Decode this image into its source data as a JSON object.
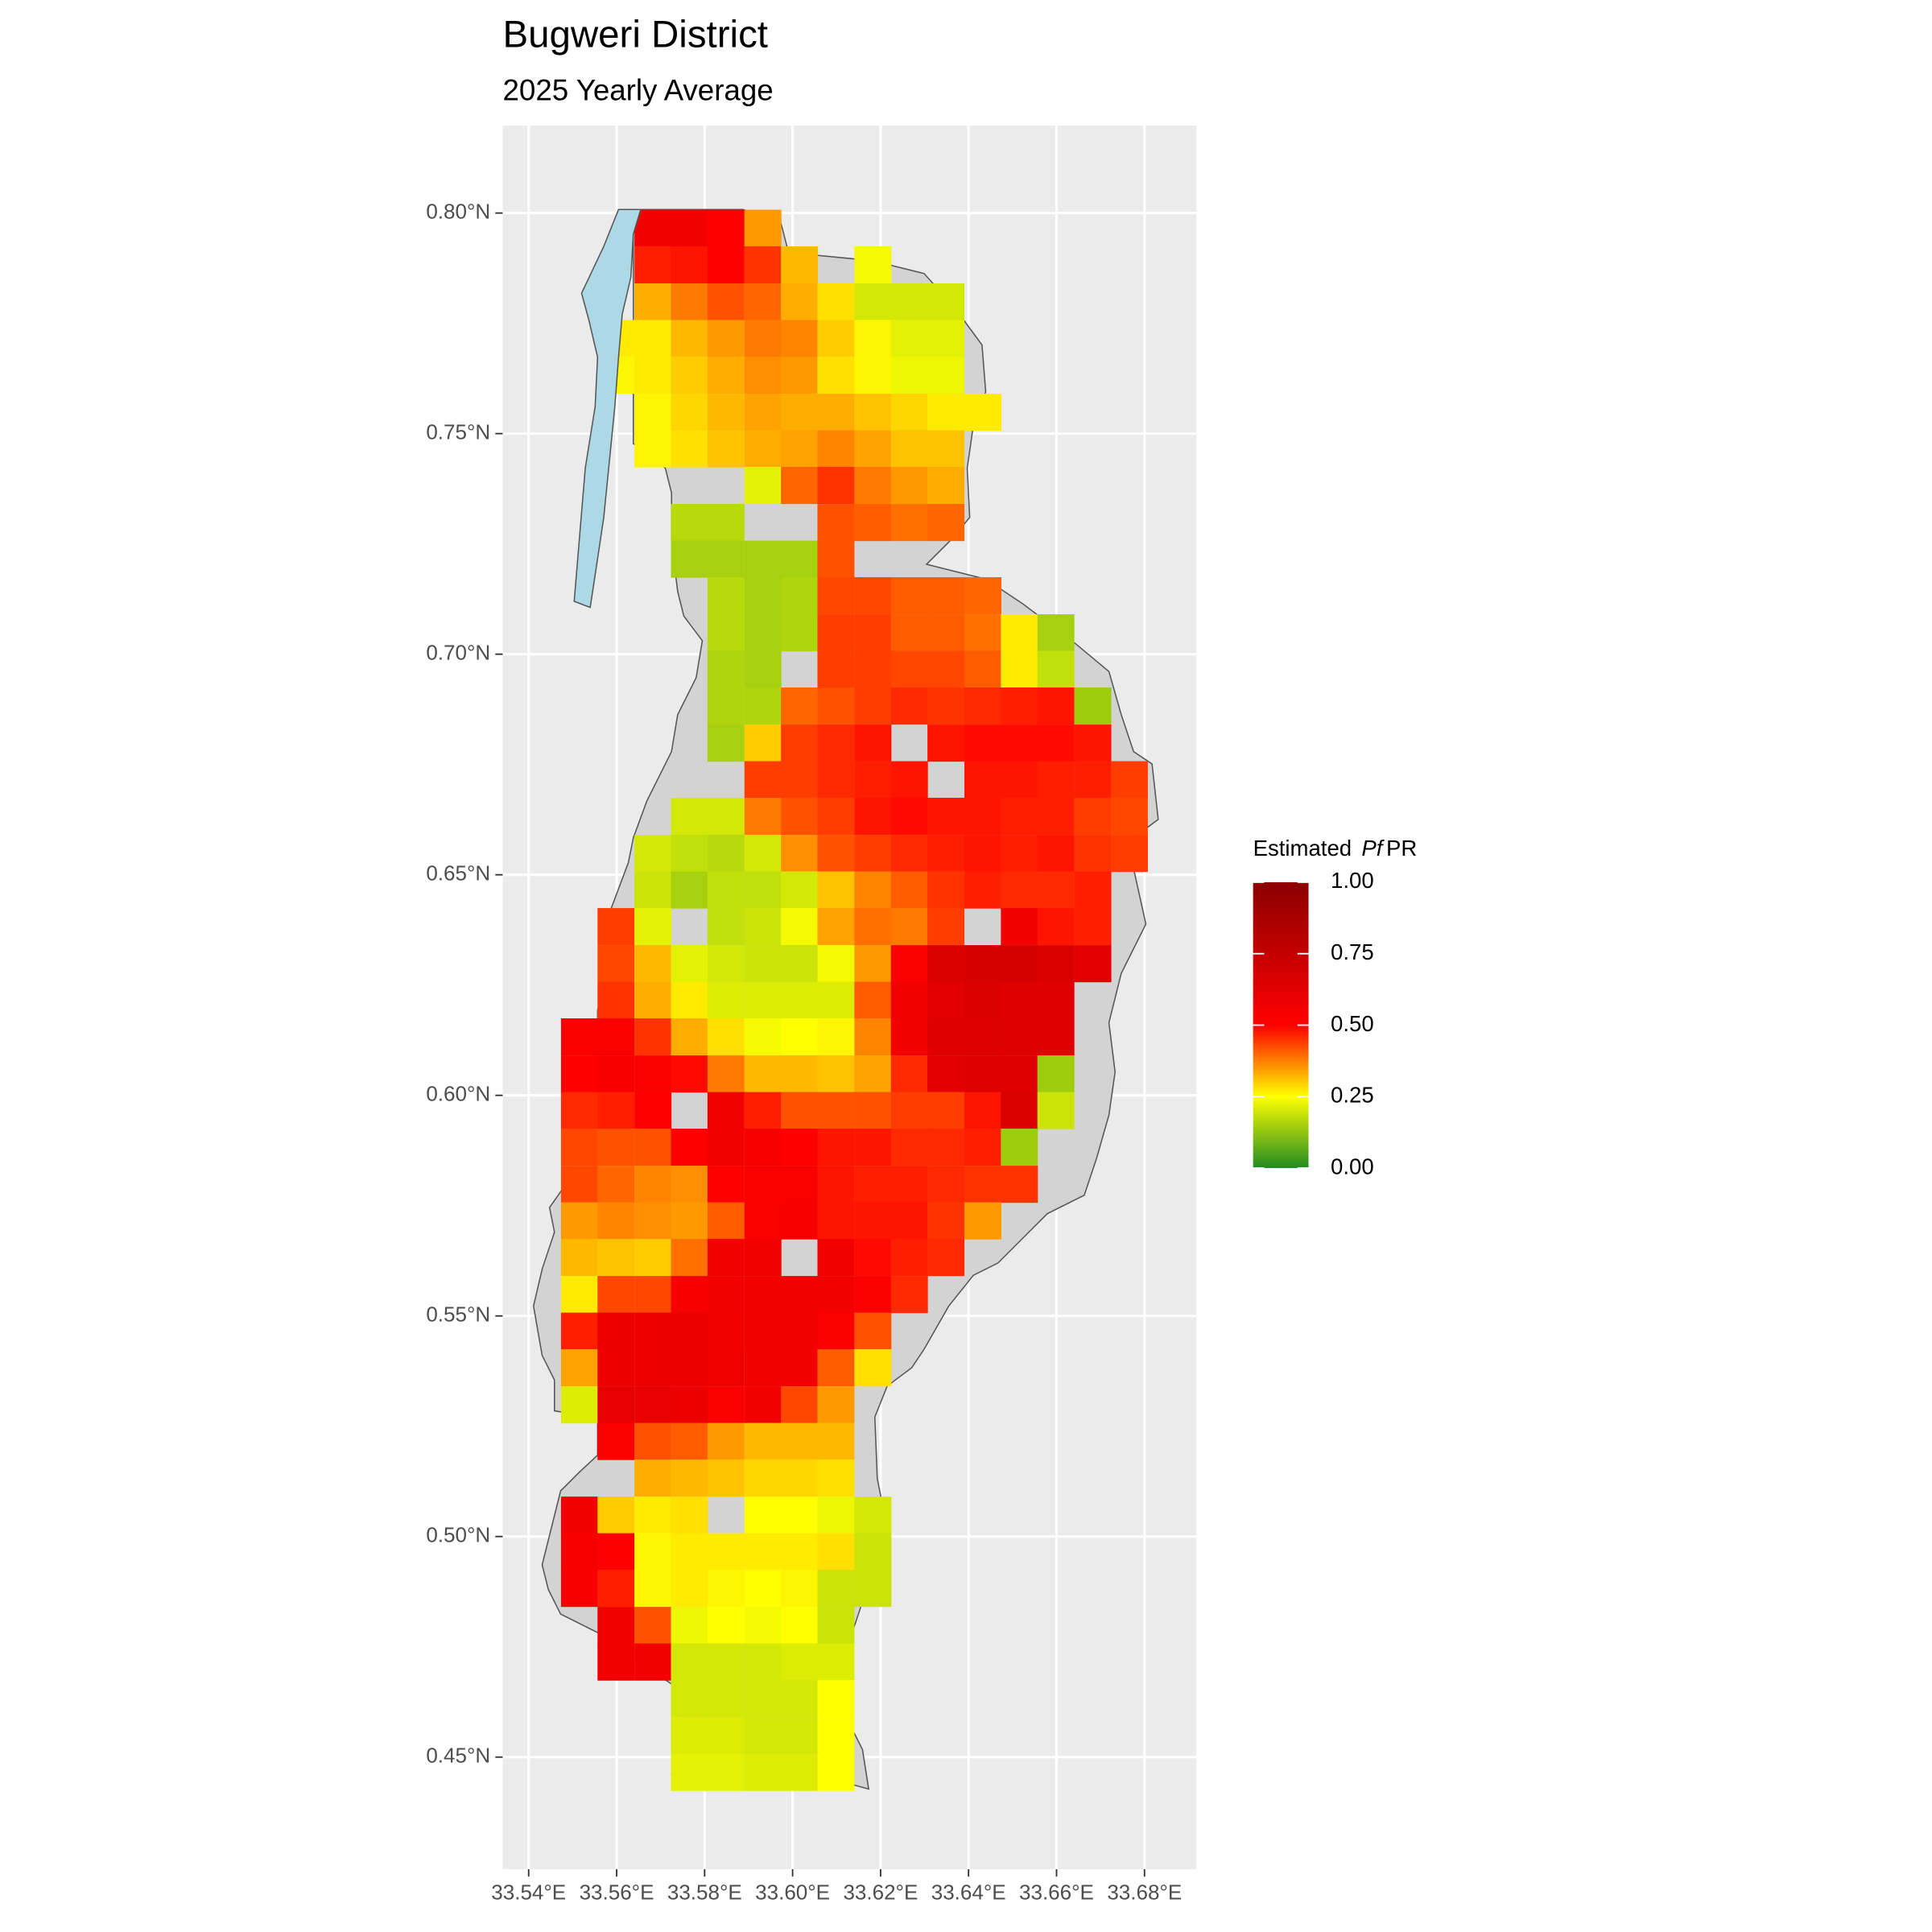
{
  "chart_data": {
    "type": "raster-map",
    "title": "Bugweri District",
    "subtitle": "2025 Yearly Average",
    "x": [
      33.5515,
      33.5598,
      33.5682,
      33.5765,
      33.5848,
      33.5932,
      33.6015,
      33.6098,
      33.6182,
      33.6265,
      33.6348,
      33.6432,
      33.6515,
      33.6598,
      33.6682,
      33.6765
    ],
    "y": [
      0.7966,
      0.7883,
      0.7799,
      0.7716,
      0.7633,
      0.7549,
      0.7466,
      0.7383,
      0.7299,
      0.7216,
      0.7133,
      0.7049,
      0.6966,
      0.6883,
      0.6799,
      0.6716,
      0.6633,
      0.6549,
      0.6466,
      0.6383,
      0.6299,
      0.6216,
      0.6133,
      0.6049,
      0.5966,
      0.5883,
      0.5799,
      0.5716,
      0.5633,
      0.5549,
      0.5466,
      0.5383,
      0.5299,
      0.5216,
      0.5133,
      0.5049,
      0.4966,
      0.4883,
      0.4799,
      0.4716,
      0.4633,
      0.4549,
      0.4466
    ],
    "values": [
      [
        null,
        null,
        0.55,
        0.55,
        0.5,
        0.35,
        null,
        null,
        null,
        null,
        null,
        null,
        null,
        null,
        null,
        null
      ],
      [
        null,
        null,
        0.47,
        0.48,
        0.5,
        0.45,
        0.32,
        null,
        0.24,
        null,
        null,
        null,
        null,
        null,
        null,
        null
      ],
      [
        null,
        null,
        0.33,
        0.38,
        0.42,
        0.4,
        0.33,
        0.28,
        0.2,
        0.2,
        0.2,
        null,
        null,
        null,
        null,
        null
      ],
      [
        null,
        0.27,
        0.27,
        0.32,
        0.35,
        0.38,
        0.37,
        0.3,
        0.26,
        0.22,
        0.22,
        null,
        null,
        null,
        null,
        null
      ],
      [
        null,
        0.26,
        0.27,
        0.3,
        0.33,
        0.36,
        0.35,
        0.28,
        0.26,
        0.23,
        0.23,
        null,
        null,
        null,
        null,
        null
      ],
      [
        null,
        null,
        0.26,
        0.29,
        0.32,
        0.34,
        0.33,
        0.33,
        0.31,
        0.29,
        0.27,
        0.27,
        null,
        null,
        null,
        null
      ],
      [
        null,
        null,
        0.26,
        0.28,
        0.31,
        0.33,
        0.34,
        0.37,
        0.34,
        0.31,
        0.31,
        null,
        null,
        null,
        null,
        null
      ],
      [
        null,
        null,
        null,
        null,
        null,
        0.22,
        0.4,
        0.45,
        0.38,
        0.35,
        0.33,
        null,
        null,
        null,
        null,
        null
      ],
      [
        null,
        null,
        null,
        0.17,
        0.17,
        null,
        null,
        0.42,
        0.41,
        0.39,
        0.4,
        null,
        null,
        null,
        null,
        null
      ],
      [
        null,
        null,
        null,
        0.15,
        0.15,
        0.15,
        0.15,
        0.42,
        null,
        null,
        null,
        null,
        null,
        null,
        null,
        null
      ],
      [
        null,
        null,
        null,
        null,
        0.17,
        0.15,
        0.16,
        0.43,
        0.43,
        0.41,
        0.41,
        0.4,
        null,
        null,
        null,
        null
      ],
      [
        null,
        null,
        null,
        null,
        0.17,
        0.15,
        0.16,
        0.44,
        0.44,
        0.41,
        0.41,
        0.39,
        0.27,
        0.15,
        null,
        null
      ],
      [
        null,
        null,
        null,
        null,
        0.16,
        0.15,
        null,
        0.44,
        0.44,
        0.43,
        0.43,
        0.41,
        0.27,
        0.18,
        null,
        null
      ],
      [
        null,
        null,
        null,
        null,
        0.16,
        0.16,
        0.4,
        0.42,
        0.44,
        0.46,
        0.45,
        0.46,
        0.47,
        0.48,
        0.14,
        null
      ],
      [
        null,
        null,
        null,
        null,
        0.15,
        0.3,
        0.44,
        0.46,
        0.48,
        null,
        0.48,
        0.49,
        0.49,
        0.49,
        0.48,
        null
      ],
      [
        null,
        null,
        null,
        null,
        null,
        0.44,
        0.44,
        0.46,
        0.47,
        0.48,
        null,
        0.48,
        0.48,
        0.47,
        0.47,
        0.44
      ],
      [
        null,
        null,
        null,
        0.2,
        0.2,
        0.38,
        0.42,
        0.44,
        0.48,
        0.49,
        0.48,
        0.48,
        0.47,
        0.47,
        0.44,
        0.43
      ],
      [
        null,
        null,
        0.2,
        0.18,
        0.17,
        0.2,
        0.36,
        0.42,
        0.44,
        0.46,
        0.47,
        0.48,
        0.47,
        0.48,
        0.45,
        0.44
      ],
      [
        null,
        null,
        0.19,
        0.15,
        0.18,
        0.18,
        0.2,
        0.31,
        0.37,
        0.41,
        0.45,
        0.47,
        0.46,
        0.46,
        0.47,
        null
      ],
      [
        null,
        0.44,
        0.22,
        null,
        0.18,
        0.19,
        0.24,
        0.34,
        0.39,
        0.38,
        0.44,
        null,
        0.55,
        0.48,
        0.47,
        null
      ],
      [
        null,
        0.43,
        0.32,
        0.22,
        0.2,
        0.19,
        0.19,
        0.24,
        0.35,
        0.52,
        0.66,
        0.68,
        0.68,
        0.66,
        0.62,
        null
      ],
      [
        null,
        0.45,
        0.33,
        0.27,
        0.21,
        0.21,
        0.21,
        0.21,
        0.41,
        0.56,
        0.62,
        0.66,
        0.63,
        0.64,
        null,
        null
      ],
      [
        0.52,
        0.52,
        0.45,
        0.33,
        0.28,
        0.24,
        0.25,
        0.26,
        0.37,
        0.56,
        0.63,
        0.65,
        0.63,
        0.63,
        null,
        null
      ],
      [
        0.5,
        0.53,
        0.52,
        0.49,
        0.38,
        0.32,
        0.32,
        0.31,
        0.34,
        0.46,
        0.62,
        0.64,
        0.63,
        0.14,
        null,
        null
      ],
      [
        0.46,
        0.47,
        0.5,
        null,
        0.56,
        0.47,
        0.42,
        0.42,
        0.42,
        0.44,
        0.44,
        0.48,
        0.66,
        0.19,
        null,
        null
      ],
      [
        0.43,
        0.42,
        0.42,
        0.5,
        0.55,
        0.54,
        0.51,
        0.48,
        0.48,
        0.46,
        0.46,
        0.47,
        0.14,
        null,
        null,
        null
      ],
      [
        0.43,
        0.4,
        0.37,
        0.36,
        0.5,
        0.52,
        0.52,
        0.48,
        0.47,
        0.47,
        0.46,
        0.45,
        0.45,
        null,
        null,
        null
      ],
      [
        0.35,
        0.37,
        0.36,
        0.35,
        0.41,
        0.52,
        0.54,
        0.48,
        0.48,
        0.48,
        0.45,
        0.35,
        null,
        null,
        null,
        null
      ],
      [
        0.32,
        0.31,
        0.3,
        0.39,
        0.55,
        0.55,
        null,
        0.55,
        0.49,
        0.47,
        0.46,
        null,
        null,
        null,
        null,
        null
      ],
      [
        0.27,
        0.43,
        0.43,
        0.54,
        0.55,
        0.55,
        0.55,
        0.55,
        0.52,
        0.46,
        null,
        null,
        null,
        null,
        null,
        null
      ],
      [
        0.47,
        0.58,
        0.58,
        0.58,
        0.56,
        0.56,
        0.56,
        0.52,
        0.42,
        null,
        null,
        null,
        null,
        null,
        null,
        null
      ],
      [
        0.34,
        0.58,
        0.58,
        0.57,
        0.56,
        0.55,
        0.55,
        0.41,
        0.28,
        null,
        null,
        null,
        null,
        null,
        null,
        null
      ],
      [
        0.21,
        0.6,
        0.59,
        0.58,
        0.52,
        0.55,
        0.43,
        0.35,
        null,
        null,
        null,
        null,
        null,
        null,
        null,
        null
      ],
      [
        null,
        0.52,
        0.42,
        0.41,
        0.35,
        0.32,
        0.32,
        0.32,
        null,
        null,
        null,
        null,
        null,
        null,
        null,
        null
      ],
      [
        null,
        null,
        0.33,
        0.32,
        0.31,
        0.29,
        0.29,
        0.28,
        null,
        null,
        null,
        null,
        null,
        null,
        null,
        null
      ],
      [
        0.56,
        0.3,
        0.27,
        0.28,
        null,
        0.25,
        0.25,
        0.23,
        0.2,
        null,
        null,
        null,
        null,
        null,
        null,
        null
      ],
      [
        0.54,
        0.5,
        0.26,
        0.27,
        0.27,
        0.27,
        0.27,
        0.28,
        0.19,
        null,
        null,
        null,
        null,
        null,
        null,
        null
      ],
      [
        0.53,
        0.47,
        0.26,
        0.27,
        0.26,
        0.25,
        0.26,
        0.19,
        0.19,
        null,
        null,
        null,
        null,
        null,
        null,
        null
      ],
      [
        null,
        0.55,
        0.42,
        0.23,
        0.25,
        0.24,
        0.25,
        0.19,
        null,
        null,
        null,
        null,
        null,
        null,
        null,
        null
      ],
      [
        null,
        0.55,
        0.55,
        0.2,
        0.2,
        0.2,
        0.21,
        0.21,
        null,
        null,
        null,
        null,
        null,
        null,
        null,
        null
      ],
      [
        null,
        null,
        null,
        0.2,
        0.2,
        0.2,
        0.2,
        0.25,
        null,
        null,
        null,
        null,
        null,
        null,
        null,
        null
      ],
      [
        null,
        null,
        null,
        0.21,
        0.21,
        0.2,
        0.2,
        0.25,
        null,
        null,
        null,
        null,
        null,
        null,
        null,
        null
      ],
      [
        null,
        null,
        null,
        0.22,
        0.22,
        0.21,
        0.21,
        0.25,
        null,
        null,
        null,
        null,
        null,
        null,
        null,
        null
      ]
    ],
    "xlim": [
      33.5341,
      33.6918
    ],
    "ylim": [
      0.4246,
      0.8198
    ],
    "xticks": [
      {
        "value": 33.54,
        "label": "33.54°E"
      },
      {
        "value": 33.56,
        "label": "33.56°E"
      },
      {
        "value": 33.58,
        "label": "33.58°E"
      },
      {
        "value": 33.6,
        "label": "33.60°E"
      },
      {
        "value": 33.62,
        "label": "33.62°E"
      },
      {
        "value": 33.64,
        "label": "33.64°E"
      },
      {
        "value": 33.66,
        "label": "33.66°E"
      },
      {
        "value": 33.68,
        "label": "33.68°E"
      }
    ],
    "yticks": [
      {
        "value": 0.45,
        "label": "0.45°N"
      },
      {
        "value": 0.5,
        "label": "0.50°N"
      },
      {
        "value": 0.55,
        "label": "0.55°N"
      },
      {
        "value": 0.6,
        "label": "0.60°N"
      },
      {
        "value": 0.65,
        "label": "0.65°N"
      },
      {
        "value": 0.7,
        "label": "0.70°N"
      },
      {
        "value": 0.75,
        "label": "0.75°N"
      },
      {
        "value": 0.8,
        "label": "0.80°N"
      }
    ],
    "grid": true,
    "colorbar": {
      "title": [
        "Estimated",
        "Pf",
        "PR"
      ],
      "lim": [
        0,
        1
      ],
      "ticks": [
        {
          "value": 0,
          "label": "0.00"
        },
        {
          "value": 0.25,
          "label": "0.25"
        },
        {
          "value": 0.5,
          "label": "0.50"
        },
        {
          "value": 0.75,
          "label": "0.75"
        },
        {
          "value": 1,
          "label": "1.00"
        }
      ],
      "scale": [
        [
          0,
          "#228b22"
        ],
        [
          0.25,
          "#ffff00"
        ],
        [
          0.5,
          "#ff0000"
        ],
        [
          1,
          "#8b0000"
        ]
      ]
    }
  }
}
